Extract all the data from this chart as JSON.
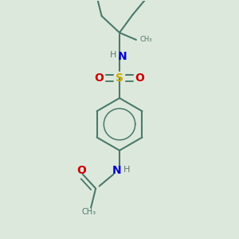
{
  "bg_color": "#dde8dd",
  "bond_color": "#4a7a6a",
  "N_color": "#0000cc",
  "O_color": "#cc0000",
  "S_color": "#ccaa00",
  "H_color": "#607870",
  "line_width": 1.5,
  "fig_size": [
    3.0,
    3.0
  ],
  "dpi": 100,
  "xlim": [
    0,
    10
  ],
  "ylim": [
    0,
    10
  ]
}
